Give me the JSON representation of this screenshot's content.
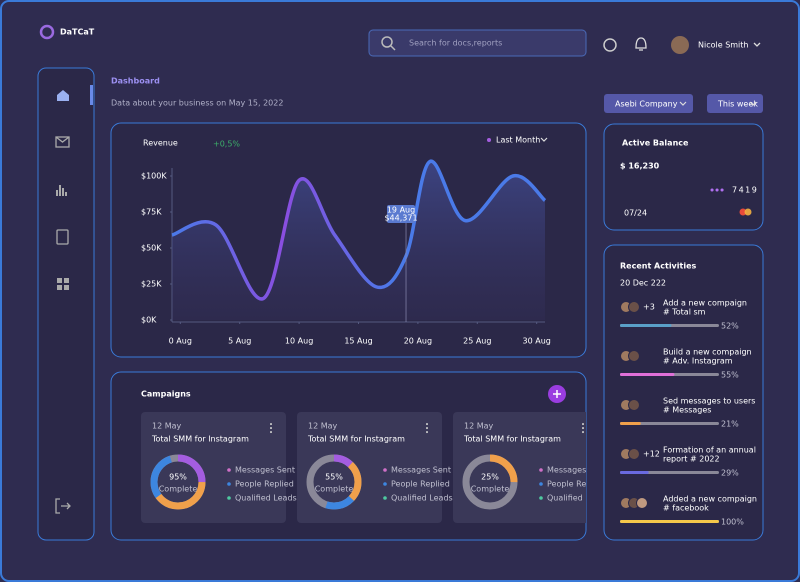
{
  "brand": "DaTCaT",
  "search_placeholder": "Search for docs,reports",
  "user_name": "Nicole Smith",
  "page": {
    "title": "Dashboard",
    "subtitle": "Data about your business on May 15, 2022"
  },
  "filters": [
    "Asebi Company",
    "This week"
  ],
  "revenue": {
    "title": "Revenue",
    "change": "+0,5%",
    "period": "Last Month",
    "xlim": [
      -0.7,
      30.7
    ],
    "ylim": [
      0,
      100000
    ],
    "xticks": [
      {
        "value": 0,
        "label": "0 Aug"
      },
      {
        "value": 5,
        "label": "5 Aug"
      },
      {
        "value": 10,
        "label": "10 Aug"
      },
      {
        "value": 15,
        "label": "15 Aug"
      },
      {
        "value": 20,
        "label": "20 Aug"
      },
      {
        "value": 25,
        "label": "25 Aug"
      },
      {
        "value": 30,
        "label": "30 Aug"
      }
    ],
    "yticks": [
      {
        "value": 0,
        "label": "$0K"
      },
      {
        "value": 25000,
        "label": "$25K"
      },
      {
        "value": 50000,
        "label": "$50K"
      },
      {
        "value": 75000,
        "label": "$75K"
      },
      {
        "value": 100000,
        "label": "$100K"
      }
    ],
    "x": [
      -0.7,
      3,
      7,
      10,
      13,
      16.5,
      19,
      21,
      24,
      28,
      30.7
    ],
    "values": [
      59000,
      66000,
      15000,
      97000,
      59000,
      23000,
      44371,
      110000,
      69000,
      100000,
      83000
    ],
    "tooltip": {
      "x": 19,
      "date": "19 Aug",
      "value": "$44,371"
    }
  },
  "campaigns": {
    "title": "Campaigns",
    "cards": [
      {
        "date": "12 May",
        "title": "Total SMM for Instagram",
        "percent": 95,
        "percent_label": "95%",
        "status": "Complete",
        "arcs": [
          {
            "color": "#a45de0",
            "value": 25
          },
          {
            "color": "#f0a04b",
            "value": 40
          },
          {
            "color": "#3d86e0",
            "value": 30
          }
        ]
      },
      {
        "date": "12 May",
        "title": "Total SMM for Instagram",
        "percent": 55,
        "percent_label": "55%",
        "status": "Complete",
        "arcs": [
          {
            "color": "#a45de0",
            "value": 12
          },
          {
            "color": "#f0a04b",
            "value": 25
          },
          {
            "color": "#3d86e0",
            "value": 18
          }
        ]
      },
      {
        "date": "12 May",
        "title": "Total SMM for Instagram",
        "percent": 25,
        "percent_label": "25%",
        "status": "Complete",
        "arcs": [
          {
            "color": "#f0a04b",
            "value": 25
          }
        ]
      }
    ],
    "legend": [
      {
        "name": "Messages Sent",
        "color": "#d070c8"
      },
      {
        "name": "People Replied",
        "color": "#3d86e0"
      },
      {
        "name": "Qualified Leads",
        "color": "#4ec9a0"
      }
    ]
  },
  "balance": {
    "title": "Active Balance",
    "amount": "$ 16,230",
    "card_last": "7419",
    "expiry": "07/24"
  },
  "activities": {
    "title": "Recent Activities",
    "date": "20 Dec 222",
    "items": [
      {
        "extra": "+3",
        "title": "Add a new compaign",
        "tag": "# Total sm",
        "progress": 52,
        "progress_label": "52%",
        "color": "#5aa0c8"
      },
      {
        "title": "Build a new compaign",
        "tag": "# Adv. Instagram",
        "progress": 55,
        "progress_label": "55%",
        "color": "#e070d8"
      },
      {
        "title": "Sed messages to users",
        "tag": "# Messages",
        "progress": 21,
        "progress_label": "21%",
        "color": "#f0a04b"
      },
      {
        "extra": "+12",
        "title": "Formation of an annual",
        "tag": "report # 2022",
        "progress": 29,
        "progress_label": "29%",
        "color": "#6a6ae0"
      },
      {
        "title": "Added a new compaign",
        "tag": "# facebook",
        "progress": 100,
        "progress_label": "100%",
        "color": "#f5c84a"
      }
    ]
  }
}
